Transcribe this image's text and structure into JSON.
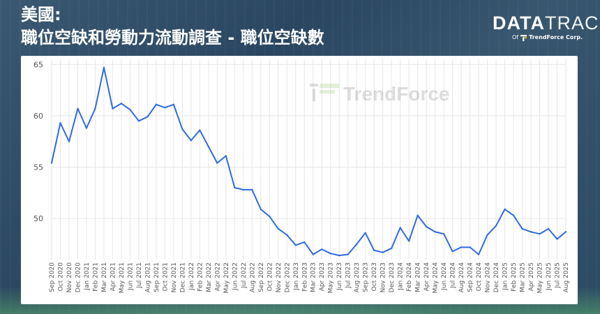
{
  "header": {
    "title_line1": "美國:",
    "title_line2": "職位空缺和勞動力流動調查 - 職位空缺數"
  },
  "brand": {
    "name_bold": "DATA",
    "name_thin": "TRACK",
    "sub_prefix": "Of",
    "sub_company": "TrendForce Corp."
  },
  "watermark": {
    "text": "TrendForce"
  },
  "colors": {
    "line": "#2f6be0",
    "grid": "#e6e6e6",
    "axis_text": "#555555"
  },
  "chart_data": {
    "type": "line",
    "title": "",
    "xlabel": "",
    "ylabel": "",
    "ylim": [
      46,
      65.5
    ],
    "yticks": [
      50,
      55,
      60,
      65
    ],
    "grid": true,
    "x": [
      "Sep 2020",
      "Oct 2020",
      "Nov 2020",
      "Dec 2020",
      "Jan 2021",
      "Feb 2021",
      "Mar 2021",
      "Apr 2021",
      "May 2021",
      "Jun 2021",
      "Jul 2021",
      "Aug 2021",
      "Sep 2021",
      "Oct 2021",
      "Nov 2021",
      "Dec 2021",
      "Jan 2022",
      "Feb 2022",
      "Mar 2022",
      "Apr 2022",
      "May 2022",
      "Jun 2022",
      "Jul 2022",
      "Aug 2022",
      "Sep 2022",
      "Oct 2022",
      "Nov 2022",
      "Dec 2022",
      "Jan 2023",
      "Feb 2023",
      "Mar 2023",
      "Apr 2023",
      "May 2023",
      "Jun 2023",
      "Jul 2023",
      "Aug 2023",
      "Sep 2023",
      "Oct 2023",
      "Nov 2023",
      "Dec 2023",
      "Jan 2024",
      "Feb 2024",
      "Mar 2024",
      "Apr 2024",
      "May 2024",
      "Jun 2024",
      "Jul 2024",
      "Aug 2024",
      "Sep 2024",
      "Oct 2024",
      "Nov 2024",
      "Dec 2024",
      "Jan 2025",
      "Feb 2025",
      "Mar 2025",
      "Apr 2025",
      "May 2025",
      "Jun 2025",
      "Jul 2025",
      "Aug 2025"
    ],
    "series": [
      {
        "values": [
          55.4,
          59.3,
          57.5,
          60.7,
          58.8,
          60.7,
          64.7,
          60.7,
          61.2,
          60.6,
          59.5,
          59.9,
          61.1,
          60.8,
          61.1,
          58.7,
          57.6,
          58.6,
          57.0,
          55.4,
          56.1,
          53.0,
          52.8,
          52.8,
          50.9,
          50.2,
          49.0,
          48.4,
          47.4,
          47.7,
          46.5,
          47.0,
          46.6,
          46.4,
          46.5,
          47.5,
          48.6,
          46.9,
          46.7,
          47.1,
          49.1,
          47.8,
          50.3,
          49.2,
          48.7,
          48.5,
          46.8,
          47.2,
          47.2,
          46.5,
          48.4,
          49.3,
          50.9,
          50.3,
          49.0,
          48.7,
          48.5,
          49.0,
          48.0,
          48.7
        ]
      }
    ]
  }
}
